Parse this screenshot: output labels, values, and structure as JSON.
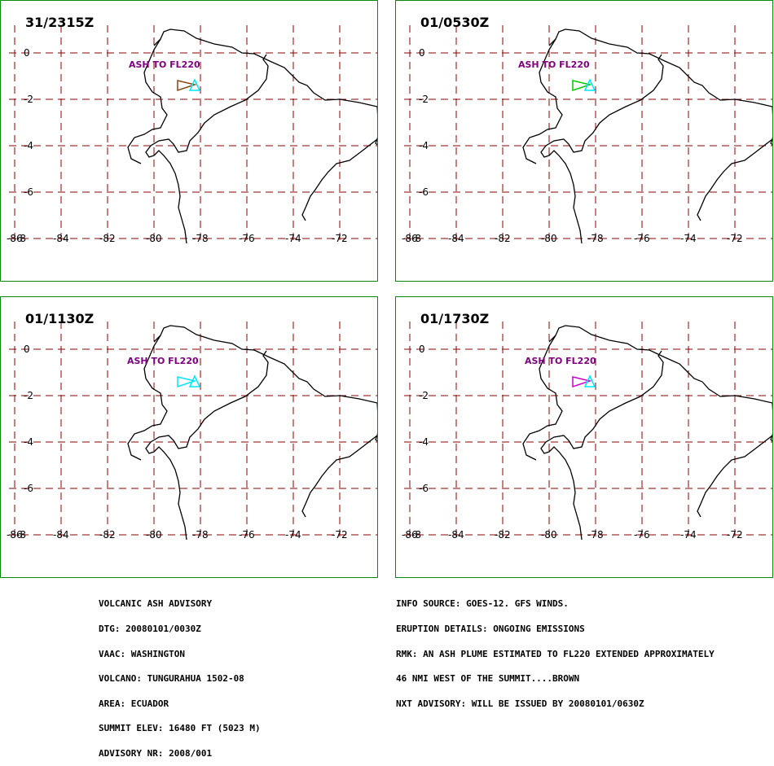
{
  "colors": {
    "grid": "#8b0000",
    "coast": "#000000",
    "frame": "#0a8a0a",
    "ash_label": "#800080",
    "summit": "#00e5ff"
  },
  "axes": {
    "lat_labels": [
      "0",
      "-2",
      "-4",
      "-6",
      "-8"
    ],
    "lon_labels": [
      "-86",
      "-84",
      "-82",
      "-80",
      "-78",
      "-76",
      "-74",
      "-72"
    ]
  },
  "panels": [
    {
      "time": "31/2315Z",
      "ash_label": "ASH TO FL220",
      "ash_label_x": 157,
      "plume_color": "#8b4513"
    },
    {
      "time": "01/0530Z",
      "ash_label": "ASH TO FL220",
      "ash_label_x": 635,
      "plume_color": "#00cc00"
    },
    {
      "time": "01/1130Z",
      "ash_label": "ASH TO FL220",
      "ash_label_x": 155,
      "plume_color": "#00e5ff"
    },
    {
      "time": "01/1730Z",
      "ash_label": "ASH TO FL220",
      "ash_label_x": 643,
      "plume_color": "#cc00cc"
    }
  ],
  "advisory": {
    "lines": [
      "VOLCANIC ASH ADVISORY",
      "DTG: 20080101/0030Z",
      "VAAC: WASHINGTON",
      "VOLCANO: TUNGURAHUA 1502-08",
      "AREA: ECUADOR",
      "SUMMIT ELEV: 16480 FT (5023 M)",
      "ADVISORY NR: 2008/001"
    ]
  },
  "info": {
    "lines": [
      "INFO SOURCE: GOES-12. GFS WINDS.",
      "ERUPTION DETAILS: ONGOING EMISSIONS",
      "RMK: AN ASH PLUME ESTIMATED TO FL220 EXTENDED APPROXIMATELY",
      "46 NMI WEST OF THE SUMMIT....BROWN",
      "NXT ADVISORY: WILL BE ISSUED BY 20080101/0630Z"
    ]
  }
}
